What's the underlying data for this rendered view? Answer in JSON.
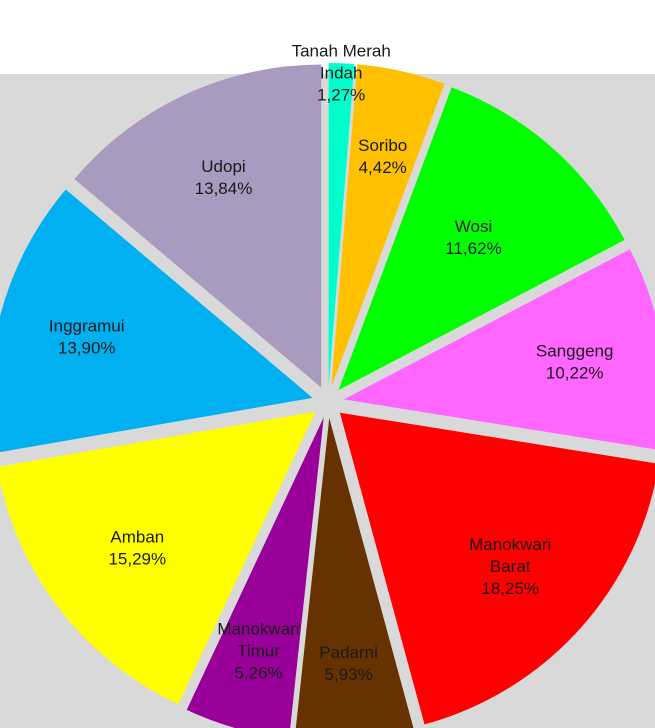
{
  "chart_data": {
    "type": "pie",
    "style": "exploded",
    "plot_background": "#d9d9d9",
    "start": "12 o'clock, clockwise",
    "slices": [
      {
        "label": [
          "Tanah Merah",
          "Indah"
        ],
        "value": 1.27,
        "value_text": "1,27%",
        "color": "#00ffcc"
      },
      {
        "label": [
          "Soribo"
        ],
        "value": 4.42,
        "value_text": "4,42%",
        "color": "#ffc000"
      },
      {
        "label": [
          "Wosi"
        ],
        "value": 11.62,
        "value_text": "11,62%",
        "color": "#00ff00"
      },
      {
        "label": [
          "Sanggeng"
        ],
        "value": 10.22,
        "value_text": "10,22%",
        "color": "#ff66ff"
      },
      {
        "label": [
          "Manokwari",
          "Barat"
        ],
        "value": 18.25,
        "value_text": "18,25%",
        "color": "#ff0000"
      },
      {
        "label": [
          "Padarni"
        ],
        "value": 5.93,
        "value_text": "5,93%",
        "color": "#663300"
      },
      {
        "label": [
          "Manokwari",
          "Timur"
        ],
        "value": 5.26,
        "value_text": "5,26%",
        "color": "#990099"
      },
      {
        "label": [
          "Amban"
        ],
        "value": 15.29,
        "value_text": "15,29%",
        "color": "#ffff00"
      },
      {
        "label": [
          "Inggramui"
        ],
        "value": 13.9,
        "value_text": "13,90%",
        "color": "#00b0f0"
      },
      {
        "label": [
          "Udopi"
        ],
        "value": 13.84,
        "value_text": "13,84%",
        "color": "#a89bbf"
      }
    ]
  }
}
